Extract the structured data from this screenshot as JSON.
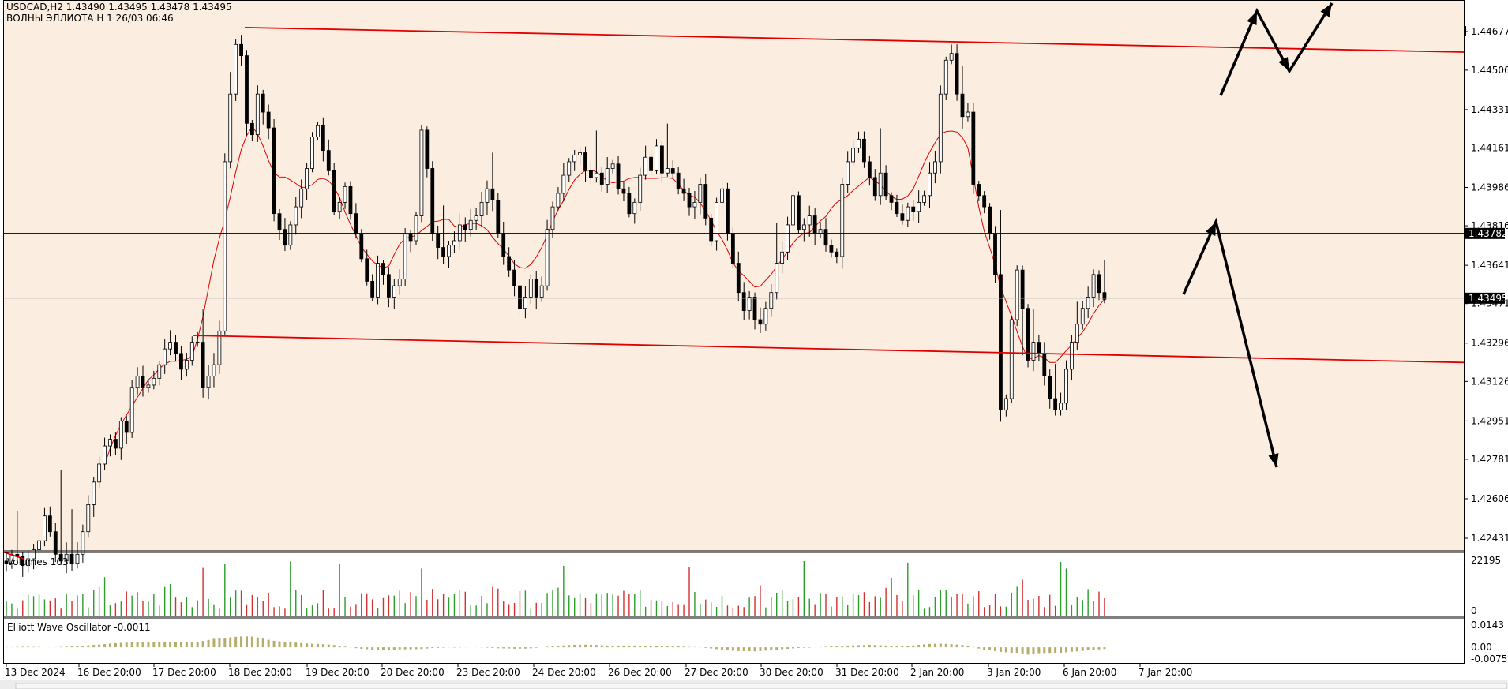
{
  "header": {
    "symbol_line": "USDCAD,H2  1.43490 1.43495 1.43478 1.43495",
    "indicator_line": "ВОЛНЫ ЭЛЛИОТА Н 1 26/03 06:46"
  },
  "colors": {
    "background": "#fbeee0",
    "bull_candle": "#ffffff",
    "bear_candle": "#000000",
    "trendline": "#e00000",
    "ma_line": "#e00000",
    "volume_up": "#2a9d2a",
    "volume_down": "#d43030",
    "oscillator": "#b5ad6a",
    "arrows": "#000000"
  },
  "chart_data": [
    {
      "type": "candlestick",
      "symbol": "USDCAD",
      "timeframe": "H2",
      "ylim": [
        1.4234,
        1.4478
      ],
      "price_ticks": [
        "1.44677",
        "1.44506",
        "1.44331",
        "1.44161",
        "1.43986",
        "1.43816",
        "1.43641",
        "1.43471",
        "1.43296",
        "1.43126",
        "1.42951",
        "1.42781",
        "1.42606",
        "1.42431"
      ],
      "horizontal_line": {
        "value": 1.43782,
        "label": "1.43782"
      },
      "current_price": {
        "value": 1.43495,
        "label": "1.43495"
      },
      "x_ticks": [
        "13 Dec 2024",
        "16 Dec 20:00",
        "17 Dec 20:00",
        "18 Dec 20:00",
        "19 Dec 20:00",
        "20 Dec 20:00",
        "23 Dec 20:00",
        "24 Dec 20:00",
        "26 Dec 20:00",
        "27 Dec 20:00",
        "30 Dec 20:00",
        "31 Dec 20:00",
        "2 Jan 20:00",
        "3 Jan 20:00",
        "6 Jan 20:00",
        "7 Jan 20:00"
      ],
      "closes": [
        1.4232,
        1.4236,
        1.4235,
        1.4231,
        1.4234,
        1.4238,
        1.4242,
        1.4253,
        1.4246,
        1.4236,
        1.4233,
        1.4236,
        1.4232,
        1.4236,
        1.4246,
        1.4258,
        1.4268,
        1.4276,
        1.4284,
        1.4287,
        1.4283,
        1.4295,
        1.429,
        1.431,
        1.4315,
        1.431,
        1.4311,
        1.4314,
        1.432,
        1.4327,
        1.433,
        1.4325,
        1.4318,
        1.4322,
        1.433,
        1.433,
        1.431,
        1.4315,
        1.432,
        1.4335,
        1.441,
        1.444,
        1.4462,
        1.4457,
        1.4427,
        1.4422,
        1.444,
        1.4432,
        1.4425,
        1.4387,
        1.438,
        1.4373,
        1.4382,
        1.439,
        1.4398,
        1.4407,
        1.4421,
        1.4426,
        1.4415,
        1.4406,
        1.4388,
        1.4392,
        1.4399,
        1.4387,
        1.4378,
        1.4367,
        1.4357,
        1.435,
        1.4365,
        1.436,
        1.435,
        1.4355,
        1.4358,
        1.4378,
        1.4375,
        1.4386,
        1.4424,
        1.4407,
        1.4378,
        1.4372,
        1.4368,
        1.4373,
        1.4375,
        1.4382,
        1.438,
        1.4384,
        1.4386,
        1.4392,
        1.4398,
        1.4393,
        1.4378,
        1.4368,
        1.4362,
        1.4355,
        1.4345,
        1.435,
        1.4358,
        1.435,
        1.4355,
        1.438,
        1.439,
        1.4396,
        1.4404,
        1.441,
        1.4413,
        1.4414,
        1.4406,
        1.4403,
        1.4405,
        1.44,
        1.4407,
        1.4409,
        1.4398,
        1.4396,
        1.4387,
        1.4392,
        1.4404,
        1.4412,
        1.4406,
        1.4417,
        1.4405,
        1.4407,
        1.4405,
        1.4398,
        1.4396,
        1.439,
        1.4392,
        1.44,
        1.4385,
        1.4375,
        1.4392,
        1.4398,
        1.4378,
        1.4365,
        1.4352,
        1.4344,
        1.435,
        1.434,
        1.4338,
        1.4345,
        1.4352,
        1.4365,
        1.437,
        1.4382,
        1.4395,
        1.438,
        1.4382,
        1.4386,
        1.4378,
        1.438,
        1.4373,
        1.437,
        1.4368,
        1.44,
        1.441,
        1.4416,
        1.442,
        1.441,
        1.4403,
        1.4395,
        1.4405,
        1.4395,
        1.4392,
        1.4387,
        1.4384,
        1.439,
        1.4388,
        1.4392,
        1.4395,
        1.4405,
        1.441,
        1.444,
        1.4455,
        1.4458,
        1.444,
        1.443,
        1.4432,
        1.44,
        1.4395,
        1.439,
        1.4378,
        1.436,
        1.43,
        1.4305,
        1.434,
        1.4362,
        1.4345,
        1.4322,
        1.433,
        1.4325,
        1.4315,
        1.4305,
        1.43,
        1.4303,
        1.4318,
        1.433,
        1.4338,
        1.4345,
        1.435,
        1.436,
        1.4352,
        1.4349
      ],
      "trendlines": [
        {
          "from": [
            "18 Dec 20:00",
            1.44695
          ],
          "to": [
            "end",
            1.44586
          ]
        },
        {
          "from": [
            "17 Dec 20:00",
            1.4333
          ],
          "to": [
            "end",
            1.4321
          ]
        }
      ],
      "moving_average": "red line",
      "annotations": "black projection arrows"
    },
    {
      "type": "bar",
      "title": "Volumes 103",
      "ylim": [
        0,
        22195
      ],
      "y_ticks": [
        "22195",
        "0"
      ]
    },
    {
      "type": "bar",
      "title": "Elliott Wave Oscillator -0.0011",
      "ylim": [
        -0.0075,
        0.0143
      ],
      "y_ticks": [
        "0.0143",
        "0.00",
        "-0.0075"
      ]
    }
  ]
}
